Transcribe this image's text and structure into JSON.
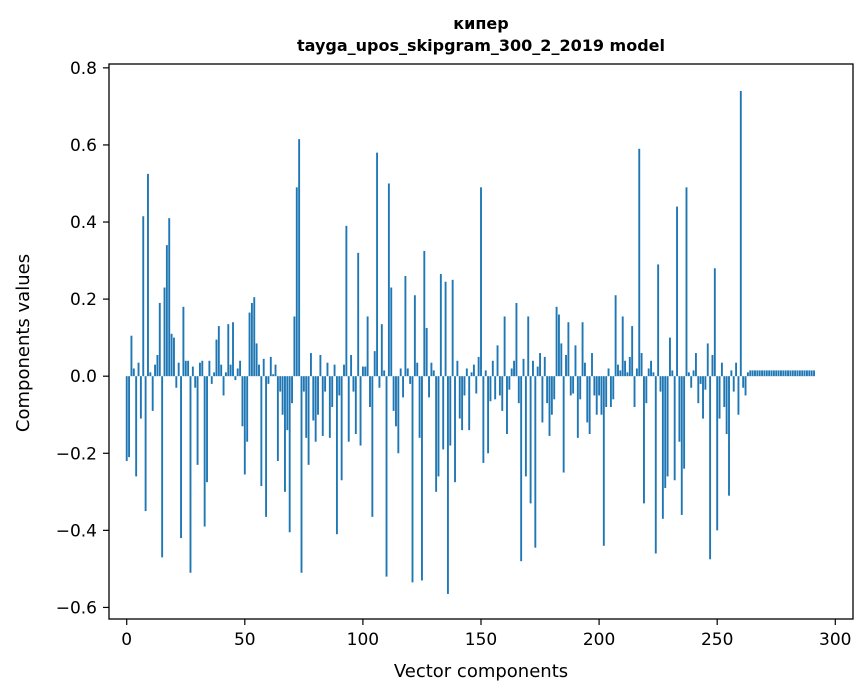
{
  "chart_data": {
    "type": "bar",
    "title": "кипер",
    "subtitle": "tayga_upos_skipgram_300_2_2019 model",
    "xlabel": "Vector components",
    "ylabel": "Components values",
    "xlim": [
      -7.5,
      307.5
    ],
    "ylim": [
      -0.63,
      0.81
    ],
    "xticks": [
      0,
      50,
      100,
      150,
      200,
      250,
      300
    ],
    "yticks": [
      -0.6,
      -0.4,
      -0.2,
      0.0,
      0.2,
      0.4,
      0.6,
      0.8
    ],
    "xtick_labels": [
      "0",
      "50",
      "100",
      "150",
      "200",
      "250",
      "300"
    ],
    "ytick_labels": [
      "−0.6",
      "−0.4",
      "−0.2",
      "0.0",
      "0.2",
      "0.4",
      "0.6",
      "0.8"
    ],
    "grid": false,
    "bar_color": "#1f77b4",
    "values": [
      -0.22,
      -0.21,
      0.105,
      0.02,
      -0.26,
      0.035,
      -0.11,
      0.415,
      -0.35,
      0.525,
      0.01,
      -0.09,
      0.03,
      0.055,
      0.19,
      -0.47,
      0.23,
      0.34,
      0.41,
      0.11,
      0.1,
      -0.03,
      0.035,
      -0.42,
      0.18,
      0.04,
      0.04,
      -0.51,
      0.025,
      -0.03,
      -0.23,
      0.035,
      0.04,
      -0.39,
      -0.275,
      0.04,
      -0.02,
      0.01,
      0.095,
      0.13,
      0.03,
      -0.05,
      0.01,
      0.135,
      0.03,
      0.14,
      -0.01,
      0.02,
      0.04,
      -0.13,
      -0.255,
      -0.17,
      0.165,
      0.19,
      0.205,
      0.085,
      0.03,
      -0.285,
      0.045,
      -0.365,
      -0.02,
      0.05,
      0.005,
      0.03,
      -0.22,
      -0.04,
      -0.1,
      -0.3,
      -0.14,
      -0.405,
      -0.07,
      0.155,
      0.49,
      0.615,
      -0.51,
      -0.04,
      -0.16,
      -0.23,
      0.06,
      -0.115,
      -0.17,
      -0.1,
      0.055,
      -0.155,
      -0.04,
      0.035,
      -0.16,
      -0.08,
      0.03,
      -0.41,
      -0.05,
      -0.27,
      0.03,
      0.39,
      -0.17,
      0.055,
      -0.04,
      -0.15,
      0.32,
      -0.18,
      0.025,
      0.025,
      0.155,
      -0.08,
      -0.365,
      0.065,
      0.58,
      -0.03,
      0.135,
      0.015,
      -0.52,
      0.5,
      0.23,
      -0.09,
      -0.13,
      -0.2,
      0.02,
      -0.055,
      0.26,
      0.02,
      -0.02,
      -0.535,
      0.21,
      0.035,
      -0.16,
      -0.53,
      0.325,
      0.125,
      -0.055,
      0.035,
      0.015,
      -0.3,
      -0.26,
      0.265,
      -0.19,
      0.245,
      -0.565,
      -0.18,
      0.25,
      -0.275,
      0.04,
      -0.11,
      -0.14,
      -0.05,
      0.02,
      -0.14,
      0.01,
      0.03,
      -0.045,
      0.05,
      0.49,
      -0.225,
      0.015,
      -0.2,
      -0.065,
      0.04,
      -0.06,
      0.08,
      -0.05,
      -0.09,
      0.155,
      -0.15,
      -0.035,
      0.02,
      0.04,
      0.19,
      -0.07,
      -0.48,
      0.045,
      -0.26,
      0.155,
      -0.33,
      0.04,
      -0.445,
      0.025,
      0.06,
      -0.12,
      0.05,
      -0.07,
      -0.155,
      -0.1,
      -0.06,
      0.18,
      0.16,
      0.085,
      -0.25,
      0.055,
      0.14,
      -0.05,
      -0.045,
      0.08,
      -0.16,
      -0.06,
      0.14,
      0.035,
      -0.12,
      -0.15,
      0.06,
      -0.05,
      -0.1,
      -0.05,
      -0.1,
      -0.44,
      -0.08,
      0.02,
      -0.08,
      -0.06,
      0.21,
      0.03,
      0.015,
      0.155,
      0.04,
      0.01,
      0.05,
      0.13,
      -0.08,
      0.02,
      0.59,
      0.06,
      -0.33,
      -0.07,
      0.02,
      0.04,
      0.01,
      -0.46,
      0.29,
      -0.04,
      -0.37,
      -0.29,
      -0.26,
      0.1,
      0.015,
      -0.27,
      0.44,
      -0.17,
      -0.36,
      -0.24,
      0.49,
      0.01,
      -0.03,
      0.015,
      0.06,
      -0.07,
      -0.02,
      -0.11,
      -0.035,
      0.085,
      -0.475,
      0.055,
      0.28,
      -0.4,
      -0.11,
      0.035,
      -0.08,
      -0.15,
      -0.31,
      0.015,
      -0.04,
      0.035,
      -0.1,
      0.74,
      -0.03,
      -0.05,
      0.01,
      0.015,
      0.015,
      0.015,
      0.015,
      0.015,
      0.015,
      0.015,
      0.015,
      0.015,
      0.015,
      0.015,
      0.015,
      0.015,
      0.015,
      0.015,
      0.015,
      0.015,
      0.015,
      0.015,
      0.015,
      0.015,
      0.015,
      0.015,
      0.015,
      0.015,
      0.015,
      0.015,
      0.015
    ]
  }
}
